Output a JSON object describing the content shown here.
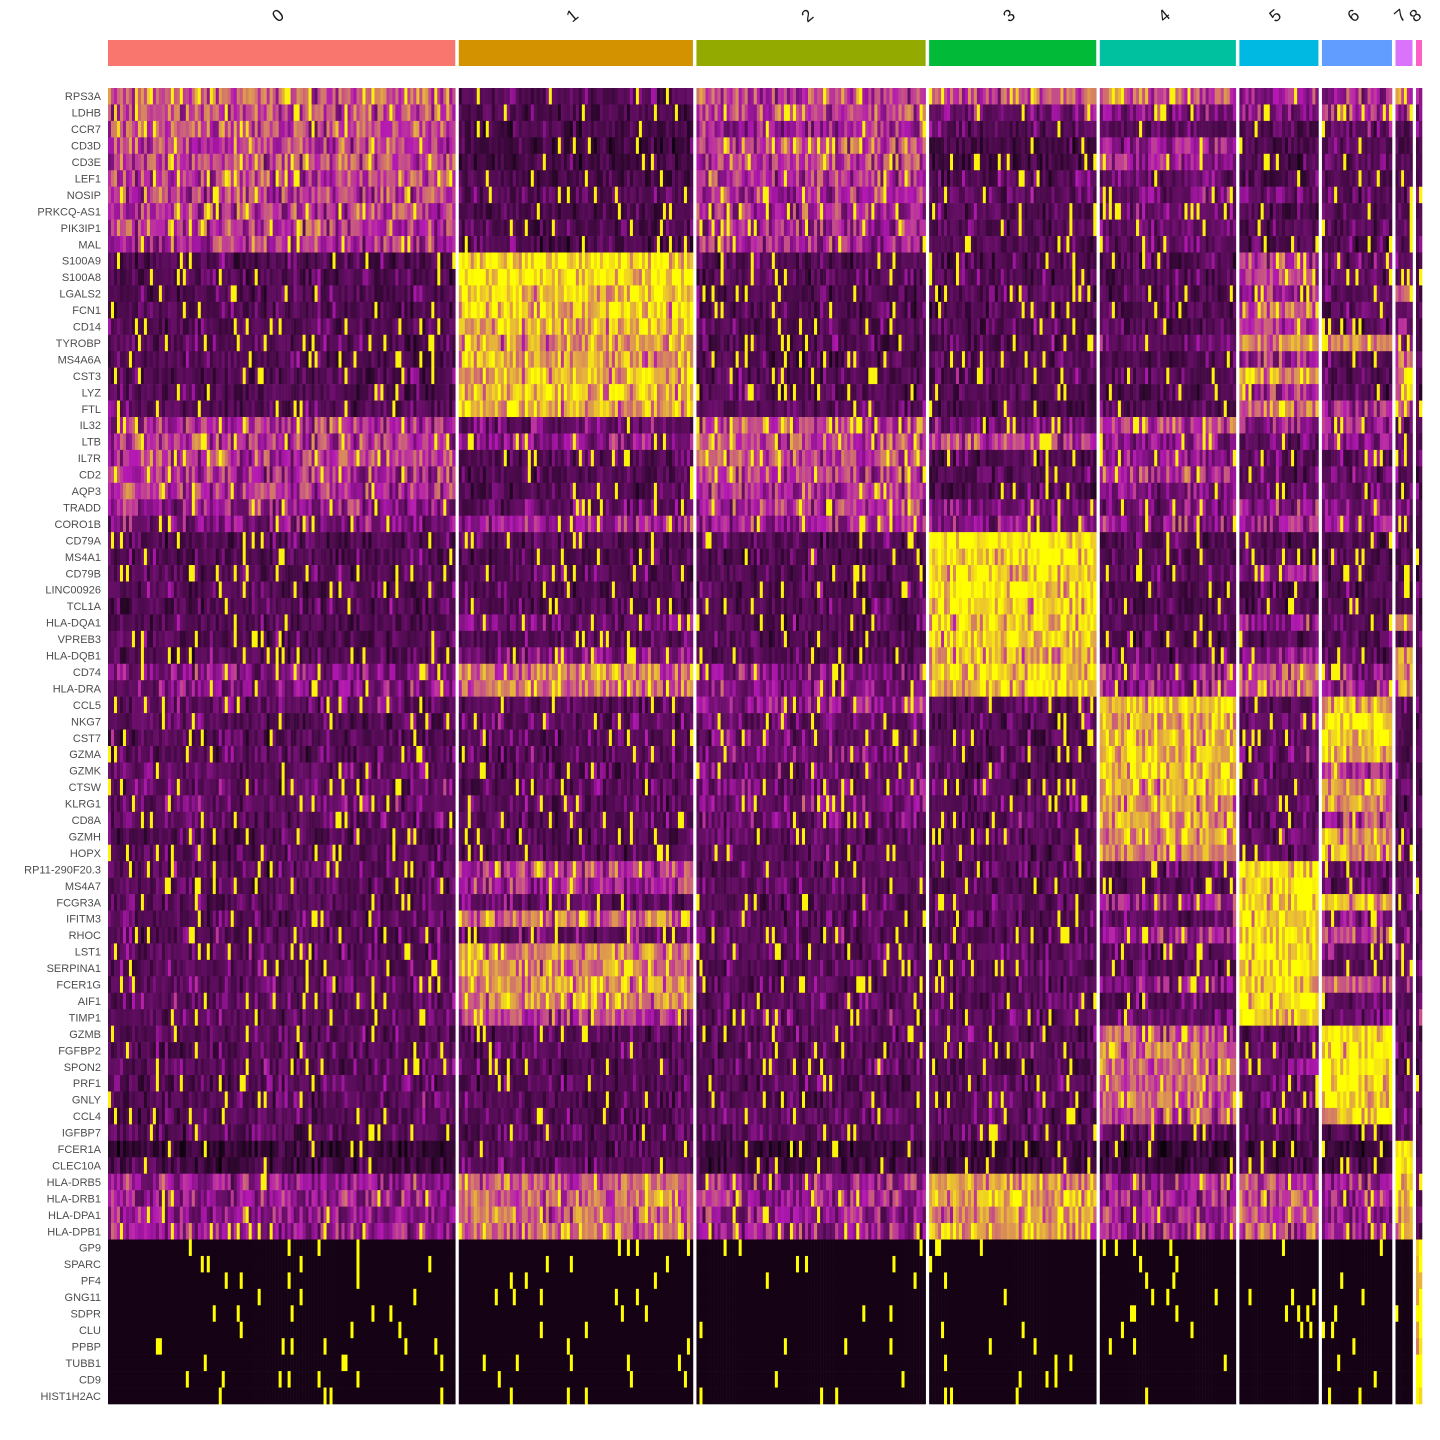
{
  "chart_data": {
    "type": "heatmap",
    "title": "",
    "xlabel": "",
    "ylabel": "",
    "legend": "none",
    "color_scale": {
      "low": "#000000",
      "mid": "#6b0f6b",
      "midplus": "#b318b3",
      "high": "#ffff00",
      "range": [
        -2.5,
        2.5
      ]
    },
    "clusters": [
      {
        "label": "0",
        "color": "#F8766D",
        "relative_width": 347
      },
      {
        "label": "1",
        "color": "#D39200",
        "relative_width": 234
      },
      {
        "label": "2",
        "color": "#93AA00",
        "relative_width": 229
      },
      {
        "label": "3",
        "color": "#00BA38",
        "relative_width": 167
      },
      {
        "label": "4",
        "color": "#00C19F",
        "relative_width": 136
      },
      {
        "label": "5",
        "color": "#00B9E3",
        "relative_width": 79
      },
      {
        "label": "6",
        "color": "#619CFF",
        "relative_width": 70
      },
      {
        "label": "7",
        "color": "#DB72FB",
        "relative_width": 17
      },
      {
        "label": "8",
        "color": "#FF61C3",
        "relative_width": 6
      }
    ],
    "genes": [
      "RPS3A",
      "LDHB",
      "CCR7",
      "CD3D",
      "CD3E",
      "LEF1",
      "NOSIP",
      "PRKCQ-AS1",
      "PIK3IP1",
      "MAL",
      "S100A9",
      "S100A8",
      "LGALS2",
      "FCN1",
      "CD14",
      "TYROBP",
      "MS4A6A",
      "CST3",
      "LYZ",
      "FTL",
      "IL32",
      "LTB",
      "IL7R",
      "CD2",
      "AQP3",
      "TRADD",
      "CORO1B",
      "CD79A",
      "MS4A1",
      "CD79B",
      "LINC00926",
      "TCL1A",
      "HLA-DQA1",
      "VPREB3",
      "HLA-DQB1",
      "CD74",
      "HLA-DRA",
      "CCL5",
      "NKG7",
      "CST7",
      "GZMA",
      "GZMK",
      "CTSW",
      "KLRG1",
      "CD8A",
      "GZMH",
      "HOPX",
      "RP11-290F20.3",
      "MS4A7",
      "FCGR3A",
      "IFITM3",
      "RHOC",
      "LST1",
      "SERPINA1",
      "FCER1G",
      "AIF1",
      "TIMP1",
      "GZMB",
      "FGFBP2",
      "SPON2",
      "PRF1",
      "GNLY",
      "CCL4",
      "IGFBP7",
      "FCER1A",
      "CLEC10A",
      "HLA-DRB5",
      "HLA-DRB1",
      "HLA-DPA1",
      "HLA-DPB1",
      "GP9",
      "SPARC",
      "PF4",
      "GNG11",
      "SDPR",
      "CLU",
      "PPBP",
      "TUBB1",
      "CD9",
      "HIST1H2AC"
    ],
    "mean_scaled_expression": [
      [
        1.2,
        -0.5,
        0.9,
        1.0,
        1.0,
        0.6,
        0.4,
        1.2,
        1.0,
        0.8
      ],
      [
        1.0,
        -0.6,
        0.9,
        0.1,
        0.1,
        0.3,
        0.6,
        0.2,
        -0.2,
        -0.2
      ],
      [
        1.0,
        -0.7,
        0.5,
        -0.5,
        -0.4,
        -0.6,
        -0.4,
        -0.6,
        -0.5,
        -0.5
      ],
      [
        0.9,
        -1.0,
        0.9,
        -1.0,
        0.4,
        -0.6,
        -0.5,
        -0.7,
        -0.5,
        -0.5
      ],
      [
        0.9,
        -1.0,
        0.9,
        -1.0,
        0.4,
        -0.6,
        -0.5,
        -0.7,
        -0.6,
        -0.5
      ],
      [
        0.9,
        -0.8,
        0.7,
        -0.5,
        -0.2,
        -0.7,
        -0.6,
        -0.6,
        -0.5,
        -0.5
      ],
      [
        0.8,
        -0.4,
        0.6,
        -0.4,
        -0.1,
        -0.3,
        -0.4,
        -0.6,
        -0.4,
        -0.4
      ],
      [
        0.8,
        -0.7,
        0.6,
        -0.5,
        -0.1,
        -0.6,
        -0.6,
        -0.6,
        -0.5,
        -0.5
      ],
      [
        0.8,
        -0.6,
        0.6,
        -0.4,
        -0.1,
        -0.4,
        -0.4,
        -0.6,
        -0.4,
        -0.4
      ],
      [
        0.7,
        -0.7,
        0.5,
        -0.6,
        -0.3,
        -0.6,
        -0.6,
        -0.7,
        -0.5,
        -0.5
      ],
      [
        -0.6,
        2.3,
        -0.6,
        -0.6,
        -0.6,
        0.9,
        -0.3,
        0.2,
        -0.6,
        -0.6
      ],
      [
        -0.6,
        2.3,
        -0.6,
        -0.6,
        -0.6,
        0.7,
        -0.3,
        0.2,
        -0.6,
        -0.6
      ],
      [
        -0.6,
        2.1,
        -0.6,
        -0.6,
        -0.6,
        0.4,
        -0.4,
        1.0,
        -0.6,
        -0.6
      ],
      [
        -0.6,
        2.1,
        -0.6,
        -0.6,
        -0.6,
        1.3,
        -0.4,
        0.0,
        -0.6,
        -0.6
      ],
      [
        -0.6,
        1.9,
        -0.6,
        -0.6,
        -0.6,
        0.7,
        -0.5,
        0.2,
        -0.6,
        -0.6
      ],
      [
        -0.5,
        1.7,
        -0.6,
        -0.6,
        0.0,
        1.6,
        1.2,
        0.7,
        -0.6,
        -0.6
      ],
      [
        -0.6,
        1.8,
        -0.6,
        -0.5,
        -0.6,
        0.5,
        -0.5,
        0.8,
        -0.6,
        -0.6
      ],
      [
        -0.6,
        1.9,
        -0.6,
        -0.5,
        -0.6,
        1.8,
        -0.5,
        1.8,
        -0.6,
        -0.6
      ],
      [
        -0.6,
        2.0,
        -0.6,
        -0.6,
        -0.6,
        0.8,
        -0.5,
        1.8,
        -0.6,
        -0.6
      ],
      [
        -0.5,
        1.8,
        -0.5,
        -0.8,
        -0.6,
        1.5,
        0.6,
        1.0,
        -0.6,
        -0.6
      ],
      [
        0.7,
        -0.2,
        1.0,
        -0.3,
        0.9,
        0.3,
        0.6,
        -0.5,
        -0.5,
        -0.5
      ],
      [
        0.8,
        0.2,
        1.0,
        0.8,
        0.2,
        -0.1,
        0.4,
        -0.4,
        -0.5,
        -0.5
      ],
      [
        0.8,
        -0.6,
        1.0,
        -0.6,
        0.3,
        -0.4,
        -0.3,
        -0.6,
        -0.5,
        -0.5
      ],
      [
        0.6,
        -0.6,
        0.9,
        -0.6,
        0.8,
        -0.4,
        -0.2,
        -0.6,
        -0.5,
        -0.5
      ],
      [
        0.7,
        -0.6,
        0.7,
        -0.6,
        0.2,
        -0.3,
        -0.3,
        -0.6,
        -0.5,
        -0.5
      ],
      [
        0.3,
        -0.2,
        0.7,
        0.1,
        0.0,
        0.3,
        0.2,
        -0.4,
        -0.5,
        -0.5
      ],
      [
        0.1,
        0.5,
        0.4,
        0.2,
        0.2,
        0.6,
        0.3,
        -0.3,
        -0.5,
        -0.5
      ],
      [
        -0.6,
        -0.6,
        -0.6,
        2.5,
        -0.6,
        -0.6,
        -0.6,
        -0.6,
        -0.6,
        -0.6
      ],
      [
        -0.6,
        -0.6,
        -0.6,
        2.5,
        -0.6,
        -0.6,
        -0.6,
        -0.6,
        -0.6,
        -0.6
      ],
      [
        -0.5,
        -0.4,
        -0.5,
        2.2,
        -0.4,
        0.4,
        -0.4,
        -0.5,
        -0.5,
        -0.5
      ],
      [
        -0.6,
        -0.6,
        -0.6,
        2.3,
        -0.6,
        -0.6,
        -0.6,
        -0.6,
        -0.6,
        -0.6
      ],
      [
        -0.6,
        -0.6,
        -0.6,
        2.2,
        -0.6,
        -0.6,
        -0.6,
        -0.6,
        -0.6,
        -0.6
      ],
      [
        -0.6,
        0.0,
        -0.6,
        2.0,
        -0.5,
        0.4,
        -0.5,
        1.8,
        -0.6,
        -0.6
      ],
      [
        -0.6,
        -0.6,
        -0.6,
        2.1,
        -0.6,
        -0.6,
        -0.6,
        -0.6,
        -0.6,
        -0.6
      ],
      [
        -0.6,
        0.1,
        -0.6,
        1.9,
        -0.5,
        0.2,
        -0.5,
        1.8,
        -0.6,
        -0.6
      ],
      [
        0.2,
        1.3,
        0.1,
        2.1,
        0.4,
        1.2,
        0.3,
        1.6,
        -0.5,
        -0.5
      ],
      [
        0.1,
        1.4,
        0.1,
        2.1,
        0.3,
        1.3,
        0.3,
        1.6,
        -0.5,
        -0.5
      ],
      [
        -0.3,
        -0.4,
        0.3,
        -0.5,
        2.1,
        -0.4,
        1.8,
        -0.4,
        -0.5,
        -0.5
      ],
      [
        -0.5,
        -0.4,
        -0.2,
        -0.5,
        2.0,
        -0.2,
        2.4,
        -0.4,
        -0.5,
        -0.5
      ],
      [
        -0.5,
        -0.5,
        -0.3,
        -0.5,
        2.0,
        -0.3,
        2.2,
        -0.4,
        -0.5,
        -0.5
      ],
      [
        -0.4,
        -0.5,
        -0.1,
        -0.5,
        2.0,
        -0.3,
        1.9,
        -0.5,
        -0.5,
        -0.5
      ],
      [
        -0.4,
        -0.6,
        -0.2,
        -0.6,
        2.0,
        -0.5,
        0.6,
        -0.6,
        -0.6,
        -0.6
      ],
      [
        -0.3,
        -0.4,
        -0.1,
        -0.4,
        1.9,
        -0.3,
        1.9,
        -0.4,
        -0.5,
        -0.5
      ],
      [
        -0.2,
        -0.5,
        0.0,
        -0.5,
        1.6,
        -0.4,
        1.6,
        -0.5,
        -0.5,
        -0.5
      ],
      [
        -0.4,
        -0.5,
        -0.2,
        -0.5,
        1.8,
        -0.4,
        0.7,
        -0.5,
        -0.5,
        -0.5
      ],
      [
        -0.5,
        -0.5,
        -0.4,
        -0.5,
        1.8,
        -0.4,
        1.6,
        -0.5,
        -0.5,
        -0.5
      ],
      [
        -0.5,
        -0.5,
        -0.4,
        -0.5,
        1.4,
        -0.4,
        1.6,
        -0.5,
        -0.5,
        -0.5
      ],
      [
        -0.5,
        0.9,
        -0.5,
        -0.5,
        -0.5,
        2.4,
        -0.3,
        -0.5,
        -0.5,
        -0.5
      ],
      [
        -0.5,
        0.6,
        -0.5,
        -0.5,
        -0.5,
        2.3,
        -0.3,
        -0.5,
        -0.5,
        -0.5
      ],
      [
        -0.5,
        -0.3,
        -0.5,
        -0.5,
        0.4,
        2.4,
        2.0,
        -0.5,
        -0.5,
        -0.5
      ],
      [
        -0.4,
        1.2,
        -0.4,
        -0.4,
        -0.3,
        2.3,
        0.2,
        -0.4,
        -0.5,
        -0.5
      ],
      [
        -0.5,
        -0.3,
        -0.4,
        -0.5,
        0.3,
        2.2,
        0.9,
        -0.4,
        -0.5,
        -0.5
      ],
      [
        -0.4,
        1.6,
        -0.4,
        -0.4,
        -0.4,
        2.3,
        -0.2,
        -0.4,
        -0.5,
        -0.5
      ],
      [
        -0.5,
        1.4,
        -0.5,
        -0.5,
        -0.5,
        2.1,
        -0.4,
        -0.5,
        -0.5,
        -0.5
      ],
      [
        -0.3,
        1.6,
        -0.3,
        -0.4,
        0.2,
        2.2,
        1.2,
        0.0,
        -0.4,
        -0.4
      ],
      [
        -0.4,
        1.6,
        -0.4,
        -0.4,
        -0.4,
        2.2,
        -0.2,
        -0.4,
        -0.5,
        -0.5
      ],
      [
        -0.4,
        0.9,
        -0.3,
        -0.4,
        -0.3,
        2.1,
        -0.1,
        -0.3,
        -0.4,
        0.6
      ],
      [
        -0.5,
        -0.5,
        -0.5,
        -0.5,
        1.0,
        -0.4,
        2.4,
        -0.5,
        -0.5,
        -0.5
      ],
      [
        -0.5,
        -0.5,
        -0.5,
        -0.5,
        1.2,
        -0.4,
        2.4,
        -0.5,
        -0.5,
        -0.5
      ],
      [
        -0.5,
        -0.5,
        -0.5,
        -0.5,
        1.2,
        0.0,
        2.3,
        -0.5,
        -0.5,
        -0.5
      ],
      [
        -0.5,
        -0.5,
        -0.5,
        -0.5,
        1.3,
        -0.3,
        2.3,
        -0.5,
        -0.5,
        -0.5
      ],
      [
        -0.5,
        -0.5,
        -0.5,
        -0.5,
        1.2,
        -0.3,
        2.3,
        -0.5,
        -0.5,
        -0.5
      ],
      [
        -0.5,
        -0.5,
        -0.4,
        -0.5,
        1.1,
        -0.4,
        2.2,
        -0.5,
        -0.5,
        -0.5
      ],
      [
        -0.5,
        -0.5,
        -0.5,
        -0.5,
        -0.5,
        -0.4,
        -0.4,
        -0.5,
        -0.5,
        -0.5
      ],
      [
        -1.2,
        -0.6,
        -1.2,
        -1.2,
        -1.2,
        -1.1,
        -1.1,
        2.5,
        -0.6,
        -0.6
      ],
      [
        -1.0,
        -0.5,
        -1.0,
        -1.0,
        -1.0,
        -0.9,
        -0.9,
        2.4,
        -0.6,
        -0.6
      ],
      [
        0.4,
        1.2,
        0.4,
        1.7,
        0.5,
        1.0,
        0.4,
        1.8,
        -0.5,
        -0.5
      ],
      [
        0.4,
        1.3,
        0.4,
        1.8,
        0.5,
        1.1,
        0.5,
        1.8,
        -0.5,
        -0.5
      ],
      [
        0.3,
        1.2,
        0.3,
        1.6,
        0.5,
        1.0,
        0.4,
        1.8,
        -0.5,
        -0.5
      ],
      [
        0.4,
        1.2,
        0.4,
        1.7,
        0.6,
        1.0,
        0.5,
        1.8,
        -0.5,
        -0.5
      ],
      [
        -2.0,
        -2.0,
        -2.0,
        -2.0,
        -2.0,
        -2.0,
        -2.0,
        -2.0,
        2.5,
        2.5
      ],
      [
        -2.0,
        -2.0,
        -2.0,
        -2.0,
        -2.0,
        -2.0,
        -2.0,
        -2.0,
        2.5,
        2.5
      ],
      [
        -2.0,
        -2.0,
        -2.0,
        -2.0,
        -2.0,
        -2.0,
        -2.0,
        -2.0,
        2.5,
        2.5
      ],
      [
        -2.0,
        -2.0,
        -2.0,
        -2.0,
        -2.0,
        -2.0,
        -2.0,
        -2.0,
        2.5,
        2.5
      ],
      [
        -2.0,
        -2.0,
        -2.0,
        -2.0,
        -2.0,
        -2.0,
        -2.0,
        -2.0,
        2.5,
        2.5
      ],
      [
        -2.0,
        -2.0,
        -2.0,
        -2.0,
        -2.0,
        -2.0,
        -2.0,
        -2.0,
        2.5,
        2.5
      ],
      [
        -2.0,
        -2.0,
        -2.0,
        -2.0,
        -2.0,
        -2.0,
        -2.0,
        -2.0,
        2.5,
        2.5
      ],
      [
        -2.0,
        -2.0,
        -2.0,
        -2.0,
        -2.0,
        -2.0,
        -2.0,
        -2.0,
        2.5,
        2.5
      ],
      [
        -2.0,
        -2.0,
        -2.0,
        -2.0,
        -2.0,
        -2.0,
        -2.0,
        -2.0,
        2.5,
        2.5
      ],
      [
        -2.0,
        -2.0,
        -2.0,
        -2.0,
        -2.0,
        -2.0,
        -2.0,
        -2.0,
        2.5,
        2.5
      ]
    ],
    "matrix_column_order": [
      "0",
      "1",
      "2",
      "3",
      "4",
      "5",
      "6",
      "7",
      "8a",
      "8b"
    ]
  }
}
